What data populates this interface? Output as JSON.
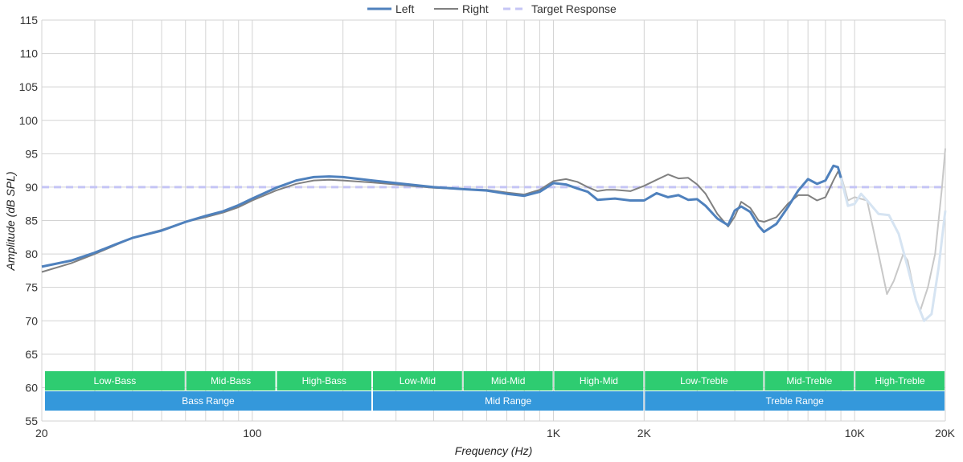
{
  "chart_data": {
    "type": "line",
    "xlabel": "Frequency (Hz)",
    "ylabel": "Amplitude (dB SPL)",
    "xscale": "log",
    "xlim": [
      20,
      20000
    ],
    "ylim": [
      55,
      115
    ],
    "grid": true,
    "legend_position": "top-center",
    "x_ticks": [
      {
        "value": 20,
        "label": "20"
      },
      {
        "value": 100,
        "label": "100"
      },
      {
        "value": 1000,
        "label": "1K"
      },
      {
        "value": 2000,
        "label": "2K"
      },
      {
        "value": 10000,
        "label": "10K"
      },
      {
        "value": 20000,
        "label": "20K"
      }
    ],
    "y_ticks": [
      55,
      60,
      65,
      70,
      75,
      80,
      85,
      90,
      95,
      100,
      105,
      110,
      115
    ],
    "series": [
      {
        "name": "Left",
        "color": "#4f81bd",
        "faded_above_hz": 9000,
        "faded_color": "#d6e4f2",
        "points": [
          [
            20,
            78.1
          ],
          [
            25,
            79.0
          ],
          [
            30,
            80.2
          ],
          [
            35,
            81.4
          ],
          [
            40,
            82.4
          ],
          [
            50,
            83.5
          ],
          [
            60,
            84.8
          ],
          [
            70,
            85.7
          ],
          [
            80,
            86.4
          ],
          [
            90,
            87.3
          ],
          [
            100,
            88.3
          ],
          [
            120,
            89.9
          ],
          [
            140,
            91.0
          ],
          [
            160,
            91.5
          ],
          [
            180,
            91.6
          ],
          [
            200,
            91.5
          ],
          [
            250,
            91.0
          ],
          [
            300,
            90.6
          ],
          [
            400,
            90.0
          ],
          [
            500,
            89.7
          ],
          [
            600,
            89.5
          ],
          [
            700,
            89.0
          ],
          [
            800,
            88.7
          ],
          [
            900,
            89.3
          ],
          [
            1000,
            90.6
          ],
          [
            1100,
            90.4
          ],
          [
            1200,
            89.8
          ],
          [
            1300,
            89.3
          ],
          [
            1400,
            88.1
          ],
          [
            1500,
            88.2
          ],
          [
            1600,
            88.3
          ],
          [
            1800,
            88.0
          ],
          [
            2000,
            88.0
          ],
          [
            2200,
            89.1
          ],
          [
            2400,
            88.5
          ],
          [
            2600,
            88.8
          ],
          [
            2800,
            88.1
          ],
          [
            3000,
            88.2
          ],
          [
            3200,
            87.2
          ],
          [
            3500,
            85.3
          ],
          [
            3800,
            84.3
          ],
          [
            4000,
            86.5
          ],
          [
            4200,
            87.1
          ],
          [
            4500,
            86.3
          ],
          [
            4800,
            84.2
          ],
          [
            5000,
            83.3
          ],
          [
            5500,
            84.5
          ],
          [
            6000,
            87.0
          ],
          [
            6500,
            89.5
          ],
          [
            7000,
            91.2
          ],
          [
            7500,
            90.5
          ],
          [
            8000,
            91.0
          ],
          [
            8500,
            93.2
          ],
          [
            8800,
            93.0
          ],
          [
            9000,
            91.4
          ],
          [
            9500,
            87.2
          ],
          [
            10000,
            87.5
          ],
          [
            10500,
            89.0
          ],
          [
            11000,
            88.0
          ],
          [
            12000,
            86.0
          ],
          [
            13000,
            85.8
          ],
          [
            14000,
            83.0
          ],
          [
            15000,
            78.0
          ],
          [
            16000,
            73.0
          ],
          [
            17000,
            70.0
          ],
          [
            18000,
            71.0
          ],
          [
            19000,
            78.0
          ],
          [
            20000,
            86.5
          ]
        ]
      },
      {
        "name": "Right",
        "color": "#808080",
        "faded_above_hz": 9000,
        "faded_color": "#c8c8c8",
        "points": [
          [
            20,
            77.3
          ],
          [
            25,
            78.6
          ],
          [
            30,
            80.0
          ],
          [
            35,
            81.3
          ],
          [
            40,
            82.4
          ],
          [
            50,
            83.6
          ],
          [
            60,
            84.8
          ],
          [
            70,
            85.5
          ],
          [
            80,
            86.2
          ],
          [
            90,
            87.0
          ],
          [
            100,
            88.0
          ],
          [
            120,
            89.5
          ],
          [
            140,
            90.5
          ],
          [
            160,
            91.0
          ],
          [
            180,
            91.1
          ],
          [
            200,
            91.0
          ],
          [
            250,
            90.7
          ],
          [
            300,
            90.4
          ],
          [
            400,
            89.9
          ],
          [
            500,
            89.7
          ],
          [
            600,
            89.6
          ],
          [
            700,
            89.2
          ],
          [
            800,
            88.9
          ],
          [
            900,
            89.6
          ],
          [
            1000,
            90.9
          ],
          [
            1100,
            91.2
          ],
          [
            1200,
            90.8
          ],
          [
            1300,
            90.0
          ],
          [
            1400,
            89.4
          ],
          [
            1500,
            89.6
          ],
          [
            1600,
            89.6
          ],
          [
            1800,
            89.4
          ],
          [
            2000,
            90.2
          ],
          [
            2200,
            91.1
          ],
          [
            2400,
            91.9
          ],
          [
            2600,
            91.3
          ],
          [
            2800,
            91.4
          ],
          [
            3000,
            90.4
          ],
          [
            3200,
            89.0
          ],
          [
            3500,
            86.0
          ],
          [
            3800,
            84.1
          ],
          [
            4000,
            85.6
          ],
          [
            4200,
            87.8
          ],
          [
            4500,
            86.9
          ],
          [
            4800,
            85.0
          ],
          [
            5000,
            84.8
          ],
          [
            5500,
            85.5
          ],
          [
            6000,
            87.5
          ],
          [
            6500,
            88.8
          ],
          [
            7000,
            88.8
          ],
          [
            7500,
            88.0
          ],
          [
            8000,
            88.5
          ],
          [
            8500,
            91.0
          ],
          [
            8800,
            92.3
          ],
          [
            9000,
            91.8
          ],
          [
            9500,
            88.0
          ],
          [
            10000,
            88.5
          ],
          [
            11000,
            88.0
          ],
          [
            12000,
            80.0
          ],
          [
            12800,
            74.0
          ],
          [
            13500,
            76.0
          ],
          [
            14500,
            80.0
          ],
          [
            15000,
            79.0
          ],
          [
            16000,
            73.0
          ],
          [
            16500,
            71.5
          ],
          [
            17500,
            75.0
          ],
          [
            18500,
            80.0
          ],
          [
            19500,
            90.0
          ],
          [
            20000,
            95.8
          ]
        ]
      },
      {
        "name": "Target Response",
        "color": "#c5c5f5",
        "dashed": true,
        "points": [
          [
            20,
            90
          ],
          [
            20000,
            90
          ]
        ]
      }
    ],
    "bands": [
      {
        "label": "Low-Bass",
        "from": 20,
        "to": 60,
        "row": "top",
        "color": "#2ecc71"
      },
      {
        "label": "Mid-Bass",
        "from": 60,
        "to": 120,
        "row": "top",
        "color": "#2ecc71"
      },
      {
        "label": "High-Bass",
        "from": 120,
        "to": 250,
        "row": "top",
        "color": "#2ecc71"
      },
      {
        "label": "Low-Mid",
        "from": 250,
        "to": 500,
        "row": "top",
        "color": "#2ecc71"
      },
      {
        "label": "Mid-Mid",
        "from": 500,
        "to": 1000,
        "row": "top",
        "color": "#2ecc71"
      },
      {
        "label": "High-Mid",
        "from": 1000,
        "to": 2000,
        "row": "top",
        "color": "#2ecc71"
      },
      {
        "label": "Low-Treble",
        "from": 2000,
        "to": 5000,
        "row": "top",
        "color": "#2ecc71"
      },
      {
        "label": "Mid-Treble",
        "from": 5000,
        "to": 10000,
        "row": "top",
        "color": "#2ecc71"
      },
      {
        "label": "High-Treble",
        "from": 10000,
        "to": 20000,
        "row": "top",
        "color": "#2ecc71"
      },
      {
        "label": "Bass Range",
        "from": 20,
        "to": 250,
        "row": "bottom",
        "color": "#3498db"
      },
      {
        "label": "Mid Range",
        "from": 250,
        "to": 2000,
        "row": "bottom",
        "color": "#3498db"
      },
      {
        "label": "Treble Range",
        "from": 2000,
        "to": 20000,
        "row": "bottom",
        "color": "#3498db"
      }
    ]
  }
}
